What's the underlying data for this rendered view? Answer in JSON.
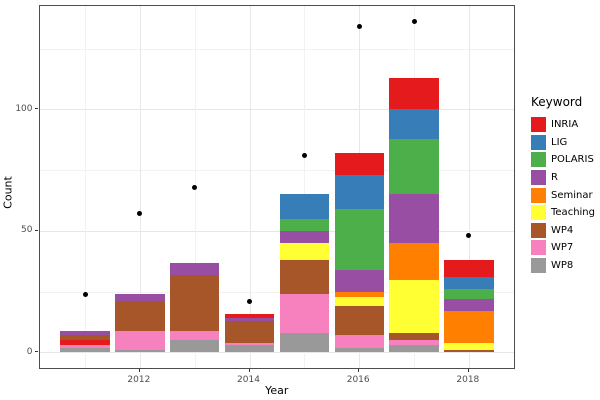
{
  "chart_data": {
    "type": "bar",
    "stacked": true,
    "overlay": "scatter",
    "xlabel": "Year",
    "ylabel": "Count",
    "legend_title": "Keyword",
    "legend_position": "right",
    "grid": true,
    "keywords": [
      {
        "name": "INRIA",
        "color": "#E41A1C"
      },
      {
        "name": "LIG",
        "color": "#377EB8"
      },
      {
        "name": "POLARIS",
        "color": "#4DAF4A"
      },
      {
        "name": "R",
        "color": "#984EA3"
      },
      {
        "name": "Seminar",
        "color": "#FF7F00"
      },
      {
        "name": "Teaching",
        "color": "#FFFF33"
      },
      {
        "name": "WP4",
        "color": "#A65628"
      },
      {
        "name": "WP7",
        "color": "#F781BF"
      },
      {
        "name": "WP8",
        "color": "#999999"
      }
    ],
    "bars": [
      {
        "year": 2011,
        "total": 9,
        "segments_top_to_bottom": [
          {
            "keyword": "R",
            "value": 2
          },
          {
            "keyword": "WP4",
            "value": 2
          },
          {
            "keyword": "INRIA",
            "value": 2
          },
          {
            "keyword": "WP7",
            "value": 1
          },
          {
            "keyword": "WP8",
            "value": 2
          }
        ]
      },
      {
        "year": 2012,
        "total": 24,
        "segments_top_to_bottom": [
          {
            "keyword": "R",
            "value": 3
          },
          {
            "keyword": "WP4",
            "value": 12
          },
          {
            "keyword": "WP7",
            "value": 8
          },
          {
            "keyword": "WP8",
            "value": 1
          }
        ]
      },
      {
        "year": 2013,
        "total": 37,
        "segments_top_to_bottom": [
          {
            "keyword": "R",
            "value": 5
          },
          {
            "keyword": "WP4",
            "value": 23
          },
          {
            "keyword": "WP7",
            "value": 4
          },
          {
            "keyword": "WP8",
            "value": 5
          }
        ]
      },
      {
        "year": 2014,
        "total": 16,
        "segments_top_to_bottom": [
          {
            "keyword": "INRIA",
            "value": 2
          },
          {
            "keyword": "R",
            "value": 1
          },
          {
            "keyword": "WP4",
            "value": 9
          },
          {
            "keyword": "WP7",
            "value": 1
          },
          {
            "keyword": "WP8",
            "value": 3
          }
        ]
      },
      {
        "year": 2015,
        "total": 65,
        "segments_top_to_bottom": [
          {
            "keyword": "LIG",
            "value": 10
          },
          {
            "keyword": "POLARIS",
            "value": 5
          },
          {
            "keyword": "R",
            "value": 5
          },
          {
            "keyword": "Teaching",
            "value": 7
          },
          {
            "keyword": "WP4",
            "value": 14
          },
          {
            "keyword": "WP7",
            "value": 16
          },
          {
            "keyword": "WP8",
            "value": 8
          }
        ]
      },
      {
        "year": 2016,
        "total": 82,
        "segments_top_to_bottom": [
          {
            "keyword": "INRIA",
            "value": 9
          },
          {
            "keyword": "LIG",
            "value": 14
          },
          {
            "keyword": "POLARIS",
            "value": 25
          },
          {
            "keyword": "R",
            "value": 9
          },
          {
            "keyword": "Seminar",
            "value": 2
          },
          {
            "keyword": "Teaching",
            "value": 4
          },
          {
            "keyword": "WP4",
            "value": 12
          },
          {
            "keyword": "WP7",
            "value": 5
          },
          {
            "keyword": "WP8",
            "value": 2
          }
        ]
      },
      {
        "year": 2017,
        "total": 113,
        "segments_top_to_bottom": [
          {
            "keyword": "INRIA",
            "value": 13
          },
          {
            "keyword": "LIG",
            "value": 12
          },
          {
            "keyword": "POLARIS",
            "value": 23
          },
          {
            "keyword": "R",
            "value": 20
          },
          {
            "keyword": "Seminar",
            "value": 15
          },
          {
            "keyword": "Teaching",
            "value": 22
          },
          {
            "keyword": "WP4",
            "value": 3
          },
          {
            "keyword": "WP7",
            "value": 2
          },
          {
            "keyword": "WP8",
            "value": 3
          }
        ]
      },
      {
        "year": 2018,
        "total": 38,
        "segments_top_to_bottom": [
          {
            "keyword": "INRIA",
            "value": 7
          },
          {
            "keyword": "LIG",
            "value": 5
          },
          {
            "keyword": "POLARIS",
            "value": 4
          },
          {
            "keyword": "R",
            "value": 5
          },
          {
            "keyword": "Seminar",
            "value": 13
          },
          {
            "keyword": "Teaching",
            "value": 3
          },
          {
            "keyword": "WP4",
            "value": 1
          }
        ]
      }
    ],
    "points": [
      {
        "year": 2011,
        "count": 24
      },
      {
        "year": 2012,
        "count": 57
      },
      {
        "year": 2013,
        "count": 68
      },
      {
        "year": 2014,
        "count": 21
      },
      {
        "year": 2015,
        "count": 81
      },
      {
        "year": 2016,
        "count": 134
      },
      {
        "year": 2017,
        "count": 136
      },
      {
        "year": 2018,
        "count": 48
      }
    ],
    "x_tick_labels": [
      "2012",
      "2014",
      "2016",
      "2018"
    ],
    "x_ticks": [
      2012,
      2014,
      2016,
      2018
    ],
    "x_minor": [
      2011,
      2013,
      2015,
      2017
    ],
    "y_tick_labels": [
      "0",
      "50",
      "100"
    ],
    "y_ticks": [
      0,
      50,
      100
    ],
    "y_minor": [
      25,
      75,
      125
    ],
    "xlim": [
      2010.17,
      2018.86
    ],
    "ylim": [
      -7,
      142.5
    ],
    "bar_width": 0.9,
    "point_color": "#000000"
  }
}
